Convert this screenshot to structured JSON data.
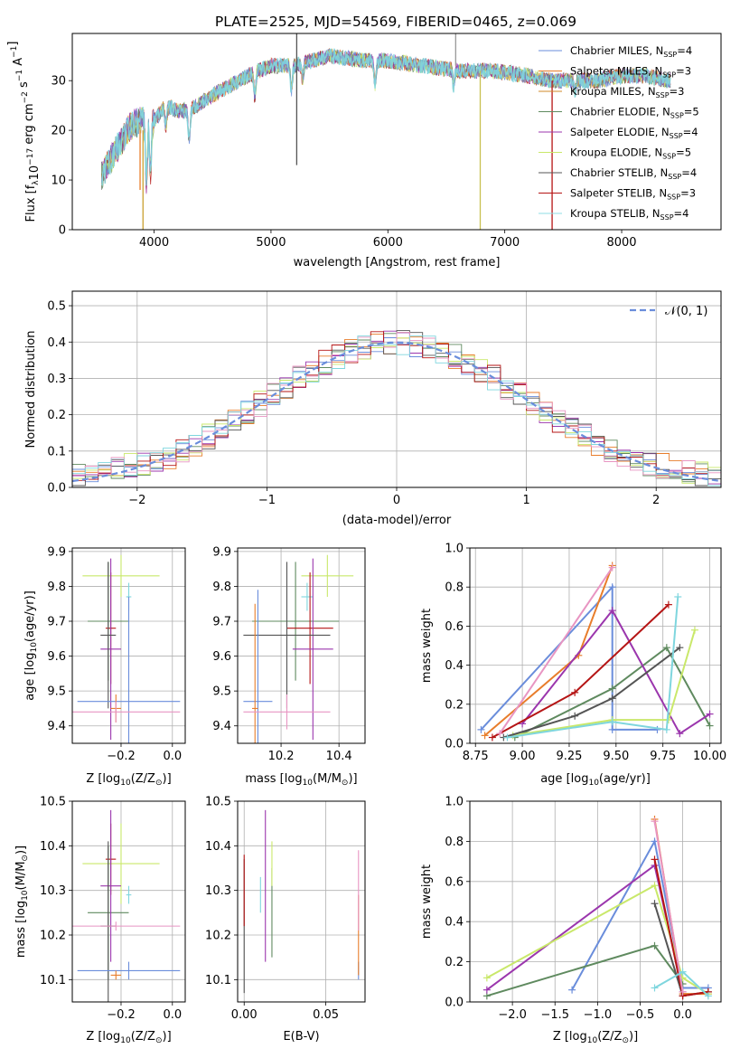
{
  "figure": {
    "title": "PLATE=2525, MJD=54569, FIBERID=0465, z=0.069"
  },
  "colors": [
    "#6a8ddb",
    "#e87d2b",
    "#5f8a5f",
    "#9b36ad",
    "#c9e86a",
    "#555555",
    "#b51515",
    "#e895c2",
    "#7fd6de"
  ],
  "chart_data": [
    {
      "id": "spectrum",
      "type": "line",
      "xlabel": "wavelength [Angstrom, rest frame]",
      "ylabel": "Flux [f_λ 10^-17 erg cm^-2 s^-1 A^-1]",
      "xlim": [
        3300,
        8850
      ],
      "ylim": [
        0,
        39.5
      ],
      "xticks": [
        4000,
        5000,
        6000,
        7000,
        8000
      ],
      "yticks": [
        0,
        10,
        20,
        30
      ],
      "grid": false,
      "legend_position": "top-right",
      "legend": [
        {
          "label": "Chabrier MILES, N",
          "sub": "SSP",
          "suffix": "=4",
          "color": "#6a8ddb"
        },
        {
          "label": "Salpeter MILES, N",
          "sub": "SSP",
          "suffix": "=3",
          "color": "#e87d2b"
        },
        {
          "label": "Kroupa MILES, N",
          "sub": "SSP",
          "suffix": "=3",
          "color": "#d08a2a"
        },
        {
          "label": "Chabrier ELODIE, N",
          "sub": "SSP",
          "suffix": "=5",
          "color": "#5f8a5f"
        },
        {
          "label": "Salpeter ELODIE, N",
          "sub": "SSP",
          "suffix": "=4",
          "color": "#9b36ad"
        },
        {
          "label": "Kroupa ELODIE, N",
          "sub": "SSP",
          "suffix": "=5",
          "color": "#c9e86a"
        },
        {
          "label": "Chabrier STELIB, N",
          "sub": "SSP",
          "suffix": "=4",
          "color": "#555555"
        },
        {
          "label": "Salpeter STELIB, N",
          "sub": "SSP",
          "suffix": "=3",
          "color": "#b51515"
        },
        {
          "label": "Kroupa STELIB, N",
          "sub": "SSP",
          "suffix": "=4",
          "color": "#8fdce4"
        }
      ],
      "spectrum_envelope": {
        "wavelength": [
          3550,
          3700,
          3800,
          3900,
          4000,
          4100,
          4200,
          4300,
          4500,
          4800,
          5000,
          5200,
          5500,
          5800,
          6000,
          6300,
          6600,
          6900,
          7200,
          7400,
          7600,
          7800,
          8000,
          8200,
          8400
        ],
        "flux": [
          11,
          17,
          21,
          22,
          22,
          25,
          24,
          24,
          27,
          31,
          33,
          33,
          35,
          34,
          34,
          33,
          32,
          32,
          31,
          30,
          30,
          30,
          31,
          31,
          30
        ]
      }
    },
    {
      "id": "residuals",
      "type": "histogram",
      "xlabel": "(data-model)/error",
      "ylabel": "Normed distribution",
      "xlim": [
        -2.5,
        2.5
      ],
      "ylim": [
        0,
        0.54
      ],
      "xticks": [
        -2,
        -1,
        0,
        1,
        2
      ],
      "yticks": [
        0.0,
        0.1,
        0.2,
        0.3,
        0.4,
        0.5
      ],
      "grid": true,
      "legend_position": "top-right",
      "reference_curve": {
        "name": "𝒩(0, 1)",
        "mean": 0,
        "sigma": 1
      }
    },
    {
      "id": "age_vs_Z",
      "type": "scatter",
      "xlabel": "Z [log10(Z/Z⊙)]",
      "ylabel": "age [log10(age/yr)]",
      "xlim": [
        -0.39,
        0.05
      ],
      "ylim": [
        9.35,
        9.91
      ],
      "xticks": [
        -0.2,
        0.0
      ],
      "yticks": [
        9.4,
        9.5,
        9.6,
        9.7,
        9.8,
        9.9
      ],
      "grid": true,
      "points": [
        {
          "x": -0.17,
          "y": 9.77,
          "xerr": 0.01,
          "yerr": 0.04,
          "color": "#7fd6de"
        },
        {
          "x": -0.2,
          "y": 9.83,
          "xerr": 0.15,
          "yerr": 0.06,
          "color": "#c9e86a"
        },
        {
          "x": -0.25,
          "y": 9.7,
          "xerr": 0.08,
          "yerr": 0.17,
          "color": "#5f8a5f"
        },
        {
          "x": -0.24,
          "y": 9.68,
          "xerr": 0.02,
          "yerr": 0.16,
          "color": "#b51515"
        },
        {
          "x": -0.24,
          "y": 9.62,
          "xerr": 0.04,
          "yerr": 0.26,
          "color": "#9b36ad"
        },
        {
          "x": -0.25,
          "y": 9.66,
          "xerr": 0.03,
          "yerr": 0.21,
          "color": "#555555"
        },
        {
          "x": -0.17,
          "y": 9.47,
          "xerr": 0.2,
          "yerr": 0.3,
          "color": "#6a8ddb"
        },
        {
          "x": -0.22,
          "y": 9.45,
          "xerr": 0.02,
          "yerr": 0.04,
          "color": "#e87d2b"
        },
        {
          "x": -0.22,
          "y": 9.44,
          "xerr": 0.25,
          "yerr": 0.03,
          "color": "#e895c2"
        }
      ]
    },
    {
      "id": "age_vs_mass",
      "type": "scatter",
      "xlabel": "mass [log10(M/M⊙)]",
      "ylabel": "",
      "xlim": [
        10.05,
        10.49
      ],
      "ylim": [
        9.35,
        9.91
      ],
      "xticks": [
        10.2,
        10.4
      ],
      "yticks": [
        9.4,
        9.5,
        9.6,
        9.7,
        9.8,
        9.9
      ],
      "grid": true,
      "points": [
        {
          "x": 10.29,
          "y": 9.77,
          "xerr": 0.02,
          "yerr": 0.04,
          "color": "#7fd6de"
        },
        {
          "x": 10.36,
          "y": 9.83,
          "xerr": 0.09,
          "yerr": 0.06,
          "color": "#c9e86a"
        },
        {
          "x": 10.25,
          "y": 9.7,
          "xerr": 0.15,
          "yerr": 0.17,
          "color": "#5f8a5f"
        },
        {
          "x": 10.3,
          "y": 9.68,
          "xerr": 0.08,
          "yerr": 0.16,
          "color": "#b51515"
        },
        {
          "x": 10.31,
          "y": 9.62,
          "xerr": 0.07,
          "yerr": 0.26,
          "color": "#9b36ad"
        },
        {
          "x": 10.22,
          "y": 9.66,
          "xerr": 0.15,
          "yerr": 0.21,
          "color": "#555555"
        },
        {
          "x": 10.12,
          "y": 9.47,
          "xerr": 0.05,
          "yerr": 0.32,
          "color": "#6a8ddb"
        },
        {
          "x": 10.11,
          "y": 9.45,
          "xerr": 0.01,
          "yerr": 0.3,
          "color": "#e87d2b"
        },
        {
          "x": 10.22,
          "y": 9.44,
          "xerr": 0.15,
          "yerr": 0.05,
          "color": "#e895c2"
        }
      ]
    },
    {
      "id": "mass_weight_vs_age",
      "type": "line",
      "xlabel": "age [log10(age/yr)]",
      "ylabel": "mass weight",
      "xlim": [
        8.72,
        10.06
      ],
      "ylim": [
        0,
        1.0
      ],
      "xticks": [
        8.75,
        9.0,
        9.25,
        9.5,
        9.75,
        10.0
      ],
      "yticks": [
        0.0,
        0.2,
        0.4,
        0.6,
        0.8,
        1.0
      ],
      "grid": true,
      "series": [
        {
          "color": "#6a8ddb",
          "x": [
            8.78,
            9.48,
            9.48,
            9.72
          ],
          "y": [
            0.07,
            0.8,
            0.07,
            0.07
          ]
        },
        {
          "color": "#e87d2b",
          "x": [
            8.8,
            9.3,
            9.48
          ],
          "y": [
            0.04,
            0.45,
            0.91
          ]
        },
        {
          "color": "#5f8a5f",
          "x": [
            8.96,
            9.48,
            9.77,
            10.0
          ],
          "y": [
            0.03,
            0.28,
            0.49,
            0.09
          ]
        },
        {
          "color": "#9b36ad",
          "x": [
            9.0,
            9.48,
            9.84,
            10.0
          ],
          "y": [
            0.1,
            0.68,
            0.05,
            0.15
          ]
        },
        {
          "color": "#c9e86a",
          "x": [
            8.95,
            9.48,
            9.78,
            9.92
          ],
          "y": [
            0.04,
            0.12,
            0.12,
            0.58
          ]
        },
        {
          "color": "#555555",
          "x": [
            8.9,
            9.28,
            9.48,
            9.84
          ],
          "y": [
            0.03,
            0.14,
            0.23,
            0.49
          ]
        },
        {
          "color": "#b51515",
          "x": [
            8.84,
            9.28,
            9.78
          ],
          "y": [
            0.03,
            0.26,
            0.71
          ]
        },
        {
          "color": "#e895c2",
          "x": [
            8.88,
            9.48
          ],
          "y": [
            0.05,
            0.9
          ]
        },
        {
          "color": "#7fd6de",
          "x": [
            8.92,
            9.48,
            9.77,
            9.83
          ],
          "y": [
            0.03,
            0.11,
            0.07,
            0.75
          ]
        }
      ]
    },
    {
      "id": "mass_vs_Z",
      "type": "scatter",
      "xlabel": "Z [log10(Z/Z⊙)]",
      "ylabel": "mass [log10(M/M⊙)]",
      "xlim": [
        -0.39,
        0.05
      ],
      "ylim": [
        10.05,
        10.5
      ],
      "xticks": [
        -0.2,
        0.0
      ],
      "yticks": [
        10.1,
        10.2,
        10.3,
        10.4,
        10.5
      ],
      "grid": true,
      "points": [
        {
          "x": -0.17,
          "y": 10.29,
          "xerr": 0.01,
          "yerr": 0.02,
          "color": "#7fd6de"
        },
        {
          "x": -0.2,
          "y": 10.36,
          "xerr": 0.15,
          "yerr": 0.09,
          "color": "#c9e86a"
        },
        {
          "x": -0.25,
          "y": 10.25,
          "xerr": 0.08,
          "yerr": 0.15,
          "color": "#5f8a5f"
        },
        {
          "x": -0.24,
          "y": 10.37,
          "xerr": 0.02,
          "yerr": 0.08,
          "color": "#b51515"
        },
        {
          "x": -0.24,
          "y": 10.31,
          "xerr": 0.04,
          "yerr": 0.17,
          "color": "#9b36ad"
        },
        {
          "x": -0.25,
          "y": 10.22,
          "xerr": 0.03,
          "yerr": 0.19,
          "color": "#555555"
        },
        {
          "x": -0.17,
          "y": 10.12,
          "xerr": 0.2,
          "yerr": 0.02,
          "color": "#6a8ddb"
        },
        {
          "x": -0.22,
          "y": 10.11,
          "xerr": 0.02,
          "yerr": 0.01,
          "color": "#e87d2b"
        },
        {
          "x": -0.22,
          "y": 10.22,
          "xerr": 0.25,
          "yerr": 0.01,
          "color": "#e895c2"
        }
      ]
    },
    {
      "id": "mass_vs_EBV",
      "type": "scatter",
      "xlabel": "E(B-V)",
      "ylabel": "",
      "xlim": [
        -0.004,
        0.074
      ],
      "ylim": [
        10.05,
        10.5
      ],
      "xticks": [
        0.0,
        0.05
      ],
      "yticks": [
        10.1,
        10.2,
        10.3,
        10.4,
        10.5
      ],
      "grid": true,
      "points": [
        {
          "x": 0.0,
          "y": 10.22,
          "yerr": 0.15,
          "color": "#555555"
        },
        {
          "x": 0.0,
          "y": 10.3,
          "yerr": 0.08,
          "color": "#b51515"
        },
        {
          "x": 0.01,
          "y": 10.29,
          "yerr": 0.04,
          "color": "#7fd6de"
        },
        {
          "x": 0.013,
          "y": 10.31,
          "yerr": 0.17,
          "color": "#9b36ad"
        },
        {
          "x": 0.017,
          "y": 10.25,
          "yerr": 0.1,
          "color": "#5f8a5f"
        },
        {
          "x": 0.017,
          "y": 10.36,
          "yerr": 0.05,
          "color": "#c9e86a"
        },
        {
          "x": 0.07,
          "y": 10.12,
          "yerr": 0.02,
          "color": "#6a8ddb"
        },
        {
          "x": 0.07,
          "y": 10.2,
          "yerr": 0.09,
          "color": "#e87d2b"
        },
        {
          "x": 0.07,
          "y": 10.3,
          "yerr": 0.09,
          "color": "#e895c2"
        }
      ]
    },
    {
      "id": "mass_weight_vs_Z",
      "type": "line",
      "xlabel": "Z [log10(Z/Z⊙)]",
      "ylabel": "mass weight",
      "xlim": [
        -2.5,
        0.45
      ],
      "ylim": [
        0,
        1.0
      ],
      "xticks": [
        -2.0,
        -1.5,
        -1.0,
        -0.5,
        0.0
      ],
      "yticks": [
        0.0,
        0.2,
        0.4,
        0.6,
        0.8,
        1.0
      ],
      "grid": true,
      "series": [
        {
          "color": "#6a8ddb",
          "x": [
            -1.3,
            -0.33,
            0.0,
            0.3
          ],
          "y": [
            0.06,
            0.8,
            0.07,
            0.07
          ]
        },
        {
          "color": "#e87d2b",
          "x": [
            -0.33,
            0.0,
            0.3
          ],
          "y": [
            0.91,
            0.04,
            0.04
          ]
        },
        {
          "color": "#5f8a5f",
          "x": [
            -2.3,
            -0.33,
            0.0
          ],
          "y": [
            0.03,
            0.28,
            0.09
          ]
        },
        {
          "color": "#9b36ad",
          "x": [
            -2.3,
            -0.33,
            0.0
          ],
          "y": [
            0.06,
            0.68,
            0.05
          ]
        },
        {
          "color": "#c9e86a",
          "x": [
            -2.3,
            -0.33,
            0.0,
            0.3
          ],
          "y": [
            0.12,
            0.58,
            0.12,
            0.04
          ]
        },
        {
          "color": "#555555",
          "x": [
            -0.33,
            0.0,
            0.3
          ],
          "y": [
            0.49,
            0.03,
            0.05
          ]
        },
        {
          "color": "#b51515",
          "x": [
            -0.33,
            0.0,
            0.3
          ],
          "y": [
            0.71,
            0.03,
            0.05
          ]
        },
        {
          "color": "#e895c2",
          "x": [
            -0.33,
            0.0
          ],
          "y": [
            0.9,
            0.05
          ]
        },
        {
          "color": "#7fd6de",
          "x": [
            -0.33,
            0.0,
            0.3
          ],
          "y": [
            0.07,
            0.15,
            0.03
          ]
        }
      ]
    }
  ]
}
